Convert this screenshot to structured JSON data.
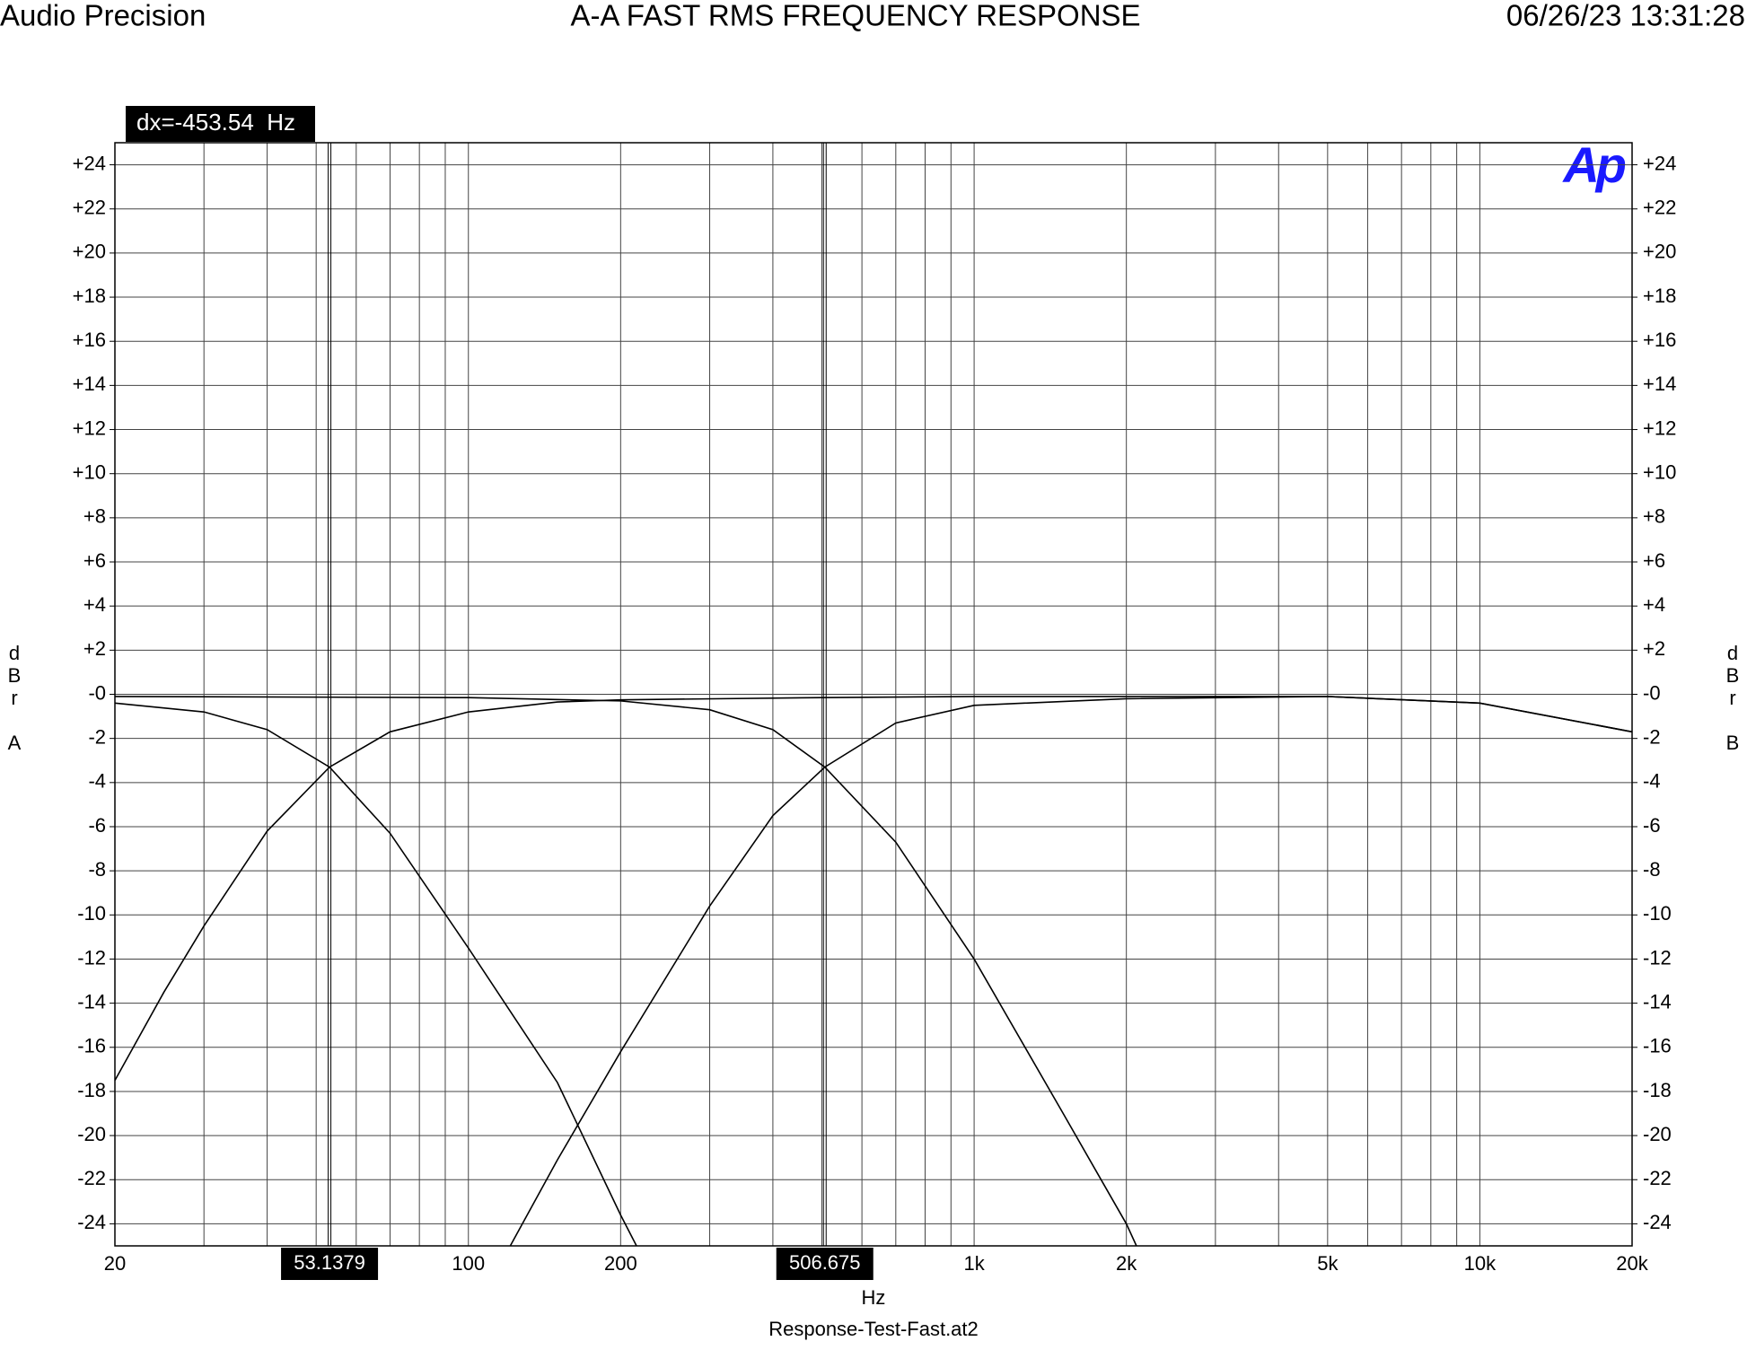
{
  "chart_data": {
    "type": "line",
    "header_left": "Audio Precision",
    "title": "A-A FAST RMS FREQUENCY RESPONSE",
    "timestamp": "06/26/23 13:31:28",
    "logo": "Ap",
    "cursor_readout": "dx=-453.54  Hz",
    "xlabel": "Hz",
    "footer": "Response-Test-Fast.at2",
    "ylabel": "dBr A",
    "y2label": "dBr B",
    "log_x": true,
    "grid": true,
    "xlim": [
      20,
      20000
    ],
    "xticks": [
      20,
      100,
      200,
      {
        "value": 1000,
        "label": "1k"
      },
      {
        "value": 2000,
        "label": "2k"
      },
      {
        "value": 5000,
        "label": "5k"
      },
      {
        "value": 10000,
        "label": "10k"
      },
      {
        "value": 20000,
        "label": "20k"
      }
    ],
    "xgrid": [
      20,
      30,
      40,
      50,
      60,
      70,
      80,
      90,
      100,
      200,
      300,
      400,
      500,
      600,
      700,
      800,
      900,
      1000,
      2000,
      3000,
      4000,
      5000,
      6000,
      7000,
      8000,
      9000,
      10000,
      20000
    ],
    "ylim": [
      -25,
      25
    ],
    "yticks": [
      {
        "value": 24,
        "label": "+24"
      },
      {
        "value": 22,
        "label": "+22"
      },
      {
        "value": 20,
        "label": "+20"
      },
      {
        "value": 18,
        "label": "+18"
      },
      {
        "value": 16,
        "label": "+16"
      },
      {
        "value": 14,
        "label": "+14"
      },
      {
        "value": 12,
        "label": "+12"
      },
      {
        "value": 10,
        "label": "+10"
      },
      {
        "value": 8,
        "label": "+8"
      },
      {
        "value": 6,
        "label": "+6"
      },
      {
        "value": 4,
        "label": "+4"
      },
      {
        "value": 2,
        "label": "+2"
      },
      {
        "value": 0,
        "label": "-0"
      },
      -2,
      -4,
      -6,
      -8,
      -10,
      -12,
      -14,
      -16,
      -18,
      -20,
      -22,
      -24
    ],
    "y2lim": [
      -25,
      25
    ],
    "y2ticks": [
      {
        "value": 24,
        "label": "+24"
      },
      {
        "value": 22,
        "label": "+22"
      },
      {
        "value": 20,
        "label": "+20"
      },
      {
        "value": 18,
        "label": "+18"
      },
      {
        "value": 16,
        "label": "+16"
      },
      {
        "value": 14,
        "label": "+14"
      },
      {
        "value": 12,
        "label": "+12"
      },
      {
        "value": 10,
        "label": "+10"
      },
      {
        "value": 8,
        "label": "+8"
      },
      {
        "value": 6,
        "label": "+6"
      },
      {
        "value": 4,
        "label": "+4"
      },
      {
        "value": 2,
        "label": "+2"
      },
      {
        "value": 0,
        "label": "-0"
      },
      -2,
      -4,
      -6,
      -8,
      -10,
      -12,
      -14,
      -16,
      -18,
      -20,
      -22,
      -24
    ],
    "cursors": [
      53.1379,
      506.675
    ],
    "series": [
      {
        "color": "#000000",
        "x": [
          20,
          30,
          40,
          53.1379,
          70,
          100,
          150,
          200,
          215
        ],
        "values": [
          -0.4,
          -0.8,
          -1.6,
          -3.3,
          -6.3,
          -11.5,
          -17.6,
          -23.6,
          -25
        ]
      },
      {
        "color": "#000000",
        "x": [
          20,
          25,
          30,
          40,
          53.1379,
          70,
          100,
          150,
          200,
          500,
          1000,
          5000,
          10000,
          20000
        ],
        "values": [
          -17.5,
          -13.5,
          -10.5,
          -6.2,
          -3.3,
          -1.7,
          -0.8,
          -0.35,
          -0.25,
          -0.15,
          -0.1,
          -0.1,
          -0.4,
          -1.7
        ]
      },
      {
        "color": "#000000",
        "x": [
          121,
          150,
          200,
          300,
          400,
          506.675,
          700,
          1000,
          2000,
          5000,
          10000,
          20000
        ],
        "values": [
          -25,
          -21.1,
          -16.2,
          -9.6,
          -5.5,
          -3.3,
          -1.3,
          -0.5,
          -0.2,
          -0.1,
          -0.4,
          -1.7
        ]
      },
      {
        "color": "#000000",
        "x": [
          20,
          100,
          200,
          300,
          400,
          506.675,
          700,
          1000,
          1500,
          2000,
          2094
        ],
        "values": [
          -0.1,
          -0.15,
          -0.3,
          -0.7,
          -1.6,
          -3.3,
          -6.7,
          -12,
          -19,
          -24,
          -25
        ]
      }
    ]
  }
}
